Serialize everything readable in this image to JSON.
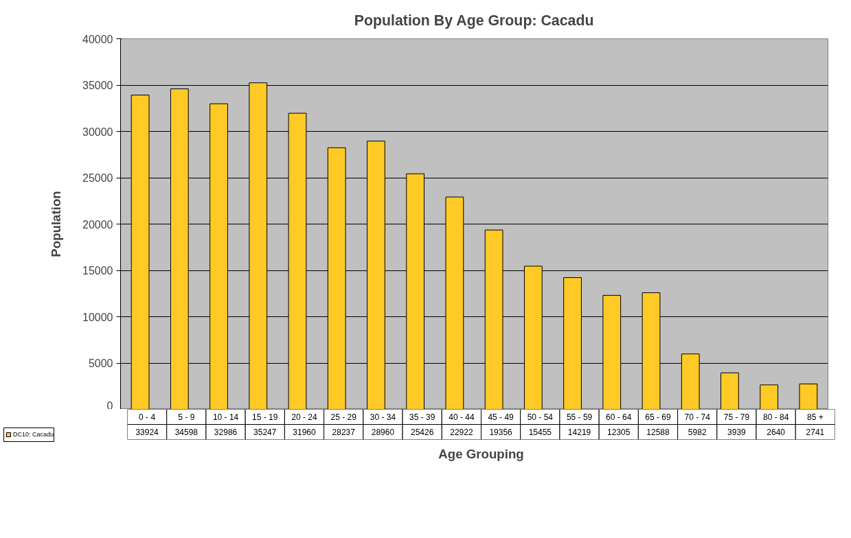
{
  "chart_data": {
    "type": "bar",
    "title": "Population By Age Group: Cacadu",
    "xlabel": "Age Grouping",
    "ylabel": "Population",
    "categories": [
      "0 - 4",
      "5 - 9",
      "10 - 14",
      "15 - 19",
      "20 - 24",
      "25 - 29",
      "30 - 34",
      "35 - 39",
      "40 - 44",
      "45 - 49",
      "50 - 54",
      "55 - 59",
      "60 - 64",
      "65 - 69",
      "70 - 74",
      "75 - 79",
      "80 - 84",
      "85 +"
    ],
    "series": [
      {
        "name": "DC10: Cacadu",
        "color": "#ffc926",
        "values": [
          33924,
          34598,
          32986,
          35247,
          31960,
          28237,
          28960,
          25426,
          22922,
          19356,
          15455,
          14219,
          12305,
          12588,
          5982,
          3939,
          2640,
          2741
        ]
      }
    ],
    "ylim": [
      0,
      40000
    ],
    "yticks": [
      0,
      5000,
      10000,
      15000,
      20000,
      25000,
      30000,
      35000,
      40000
    ],
    "grid": "y",
    "data_labels": true,
    "legend": "left"
  }
}
